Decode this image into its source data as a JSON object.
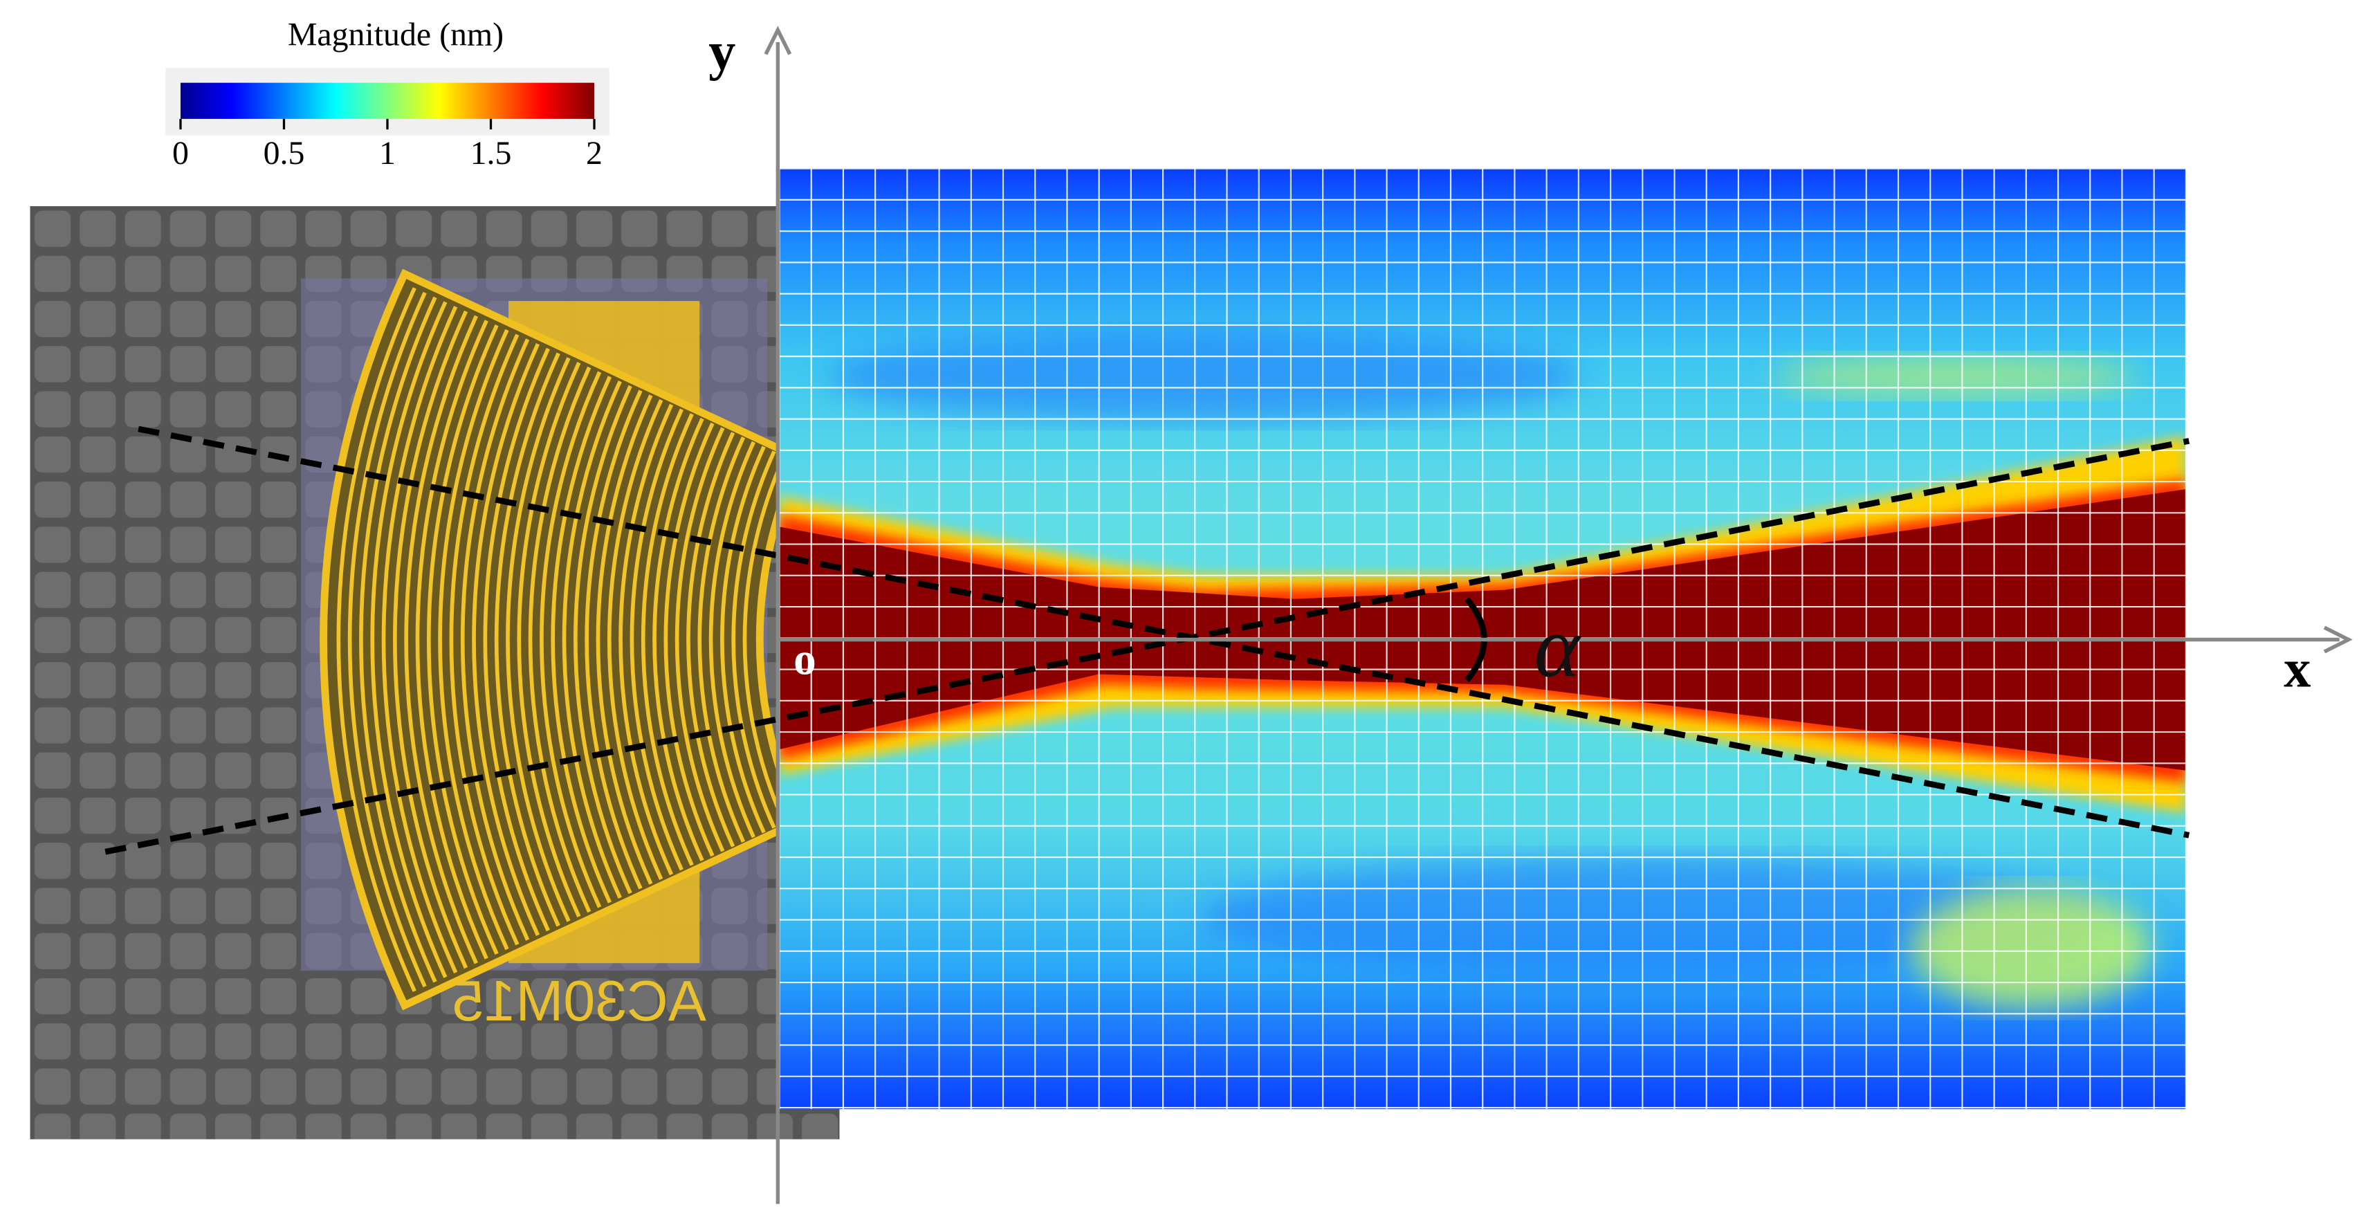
{
  "colorbar": {
    "title": "Magnitude (nm)",
    "range": [
      0,
      2
    ],
    "ticks": [
      0,
      0.5,
      1,
      1.5,
      2
    ]
  },
  "axes": {
    "x_label": "x",
    "y_label": "y",
    "origin_label": "o",
    "angle_label": "α"
  },
  "chip_label": "AC30M15"
}
